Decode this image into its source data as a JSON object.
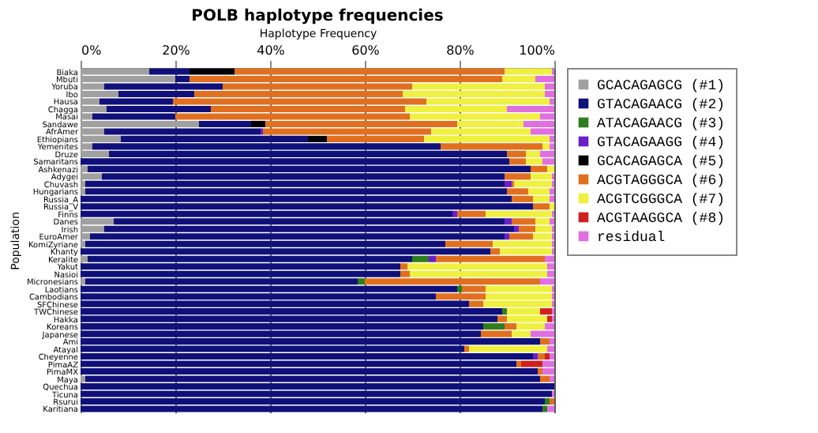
{
  "chart_data": {
    "type": "bar",
    "orientation": "horizontal",
    "stacked": true,
    "title": "POLB haplotype frequencies",
    "xlabel": "Haplotype Frequency",
    "ylabel": "Population",
    "categories": [
      "Biaka",
      "Mbuti",
      "Yoruba",
      "Ibo",
      "Hausa",
      "Chagga",
      "Masai",
      "Sandawe",
      "AfrAmer",
      "Ethiopians",
      "Yemenites",
      "Druze",
      "Samaritans",
      "Ashkenazi",
      "Adygei",
      "Chuvash",
      "Hungarians",
      "Russia_A",
      "Russia_V",
      "Finns",
      "Danes",
      "Irish",
      "EuroAmer",
      "KomiZyriane",
      "Khanty",
      "Keralite",
      "Yakut",
      "Nasioi",
      "Micronesians",
      "Laotians",
      "Cambodians",
      "SFChinese",
      "TWChinese",
      "Hakka",
      "Koreans",
      "Japanese",
      "Ami",
      "Atayal",
      "Cheyenne",
      "PimaAZ",
      "PimaMX",
      "Maya",
      "Quechua",
      "Ticuna",
      "Rsurui",
      "Karitiana"
    ],
    "xlim": [
      0,
      100
    ],
    "xticks": [
      {
        "value": 0,
        "label": "0%"
      },
      {
        "value": 20,
        "label": "20%"
      },
      {
        "value": 40,
        "label": "40%"
      },
      {
        "value": 60,
        "label": "60%"
      },
      {
        "value": 80,
        "label": "80%"
      },
      {
        "value": 100,
        "label": "100%"
      }
    ],
    "grid": "x",
    "legend": "right",
    "series": [
      {
        "name": "GCACAGAGCG (#1)",
        "color": "#a0a0a0",
        "values": [
          14.5,
          20,
          5,
          8,
          4,
          5.5,
          2.5,
          25,
          5,
          8.5,
          2.5,
          6,
          null,
          1.5,
          4.5,
          1,
          1,
          null,
          null,
          null,
          7,
          5,
          2,
          1,
          null,
          1.5,
          null,
          null,
          1,
          null,
          null,
          null,
          null,
          null,
          null,
          null,
          null,
          null,
          null,
          null,
          null,
          1,
          null,
          null,
          null,
          null
        ]
      },
      {
        "name": "GTACAGAACG (#2)",
        "color": "#10107a",
        "values": [
          8.5,
          3,
          25,
          16,
          15.5,
          22,
          17.5,
          11,
          33,
          39.5,
          73.5,
          84,
          90.5,
          93.5,
          85,
          88.5,
          89,
          91,
          95.5,
          78.5,
          82.5,
          86.5,
          87.5,
          76,
          86.5,
          68.5,
          67.5,
          67.5,
          57.5,
          79.5,
          75,
          82,
          89,
          88,
          85,
          84.5,
          97,
          81,
          95.5,
          92,
          96.5,
          96,
          100,
          99.5,
          98,
          97.5
        ]
      },
      {
        "name": "ATACAGAACG (#3)",
        "color": "#2e7d1e",
        "values": [
          null,
          null,
          null,
          null,
          null,
          null,
          null,
          null,
          null,
          null,
          null,
          null,
          null,
          null,
          null,
          null,
          null,
          null,
          null,
          null,
          null,
          null,
          null,
          null,
          null,
          3.5,
          null,
          null,
          1.5,
          1,
          null,
          null,
          1,
          null,
          4.5,
          null,
          null,
          null,
          null,
          null,
          null,
          null,
          null,
          null,
          1,
          1
        ]
      },
      {
        "name": "GTACAGAAGG (#4)",
        "color": "#6a1fc8",
        "values": [
          null,
          null,
          null,
          null,
          null,
          null,
          null,
          null,
          0.5,
          null,
          null,
          null,
          null,
          null,
          null,
          1.5,
          null,
          null,
          null,
          1,
          1.5,
          1,
          1,
          null,
          null,
          1.5,
          null,
          null,
          null,
          null,
          null,
          null,
          null,
          null,
          null,
          null,
          null,
          null,
          1,
          null,
          null,
          null,
          null,
          null,
          null,
          null
        ]
      },
      {
        "name": "GCACAGAGCA (#5)",
        "color": "#000000",
        "values": [
          9.5,
          null,
          null,
          null,
          null,
          null,
          null,
          3,
          null,
          4,
          null,
          null,
          null,
          null,
          null,
          null,
          null,
          null,
          null,
          null,
          null,
          null,
          null,
          null,
          null,
          null,
          null,
          null,
          null,
          null,
          null,
          null,
          null,
          null,
          null,
          null,
          null,
          null,
          null,
          null,
          null,
          null,
          null,
          null,
          null,
          null
        ]
      },
      {
        "name": "ACGTAGGGCA (#6)",
        "color": "#e07020",
        "values": [
          57,
          66,
          40,
          44,
          53.5,
          41,
          49.5,
          40.5,
          35.5,
          20.5,
          21.5,
          4,
          3.5,
          3.5,
          5.5,
          0.5,
          4.5,
          4.5,
          3.5,
          6,
          5,
          3.5,
          5,
          10,
          2,
          23,
          1.5,
          2,
          37,
          5,
          10.5,
          3,
          null,
          2,
          2.5,
          6.5,
          2,
          1,
          1.5,
          1,
          1,
          2,
          null,
          null,
          1,
          null
        ]
      },
      {
        "name": "ACGTCGGGCA (#7)",
        "color": "#f0f040",
        "values": [
          10,
          7,
          28,
          30,
          26,
          21.5,
          27.5,
          14,
          21,
          26.5,
          1.5,
          3,
          3.5,
          1.5,
          4.5,
          8,
          4.5,
          3.5,
          1,
          14,
          3,
          3.5,
          4,
          12.5,
          11,
          null,
          29.5,
          29,
          null,
          14,
          14,
          14.5,
          7,
          8.5,
          6,
          4,
          null,
          16.5,
          null,
          null,
          null,
          null,
          null,
          null,
          null,
          null
        ]
      },
      {
        "name": "ACGTAAGGCA (#8)",
        "color": "#d02020",
        "values": [
          null,
          null,
          null,
          null,
          null,
          null,
          null,
          null,
          null,
          null,
          null,
          null,
          null,
          null,
          null,
          null,
          null,
          null,
          null,
          null,
          null,
          null,
          null,
          null,
          null,
          null,
          null,
          null,
          null,
          null,
          null,
          null,
          2.5,
          1,
          null,
          null,
          null,
          null,
          1,
          4.5,
          null,
          null,
          null,
          null,
          null,
          null
        ]
      },
      {
        "name": "residual",
        "color": "#e070e0",
        "values": [
          0.5,
          4,
          2,
          2,
          1,
          10,
          3,
          6.5,
          5,
          1,
          1,
          3,
          2.5,
          null,
          0.5,
          0.5,
          1,
          1,
          null,
          0.5,
          1,
          0.5,
          0.5,
          0.5,
          0.5,
          2,
          1.5,
          1.5,
          3,
          0.5,
          0.5,
          0.5,
          0.5,
          0.5,
          2,
          5,
          1,
          1.5,
          1,
          2.5,
          2.5,
          1,
          null,
          0.5,
          null,
          1.5
        ]
      }
    ]
  }
}
